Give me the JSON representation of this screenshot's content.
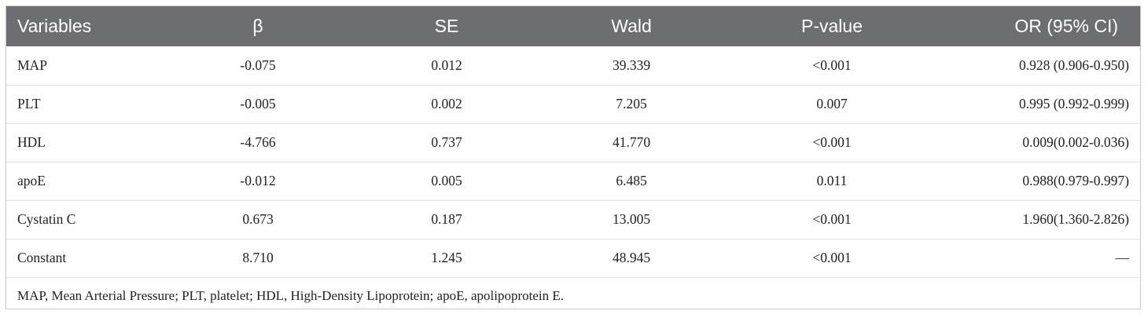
{
  "table": {
    "headers": {
      "variables": "Variables",
      "beta": "β",
      "se": "SE",
      "wald": "Wald",
      "p_value": "P-value",
      "or_ci": "OR (95% CI)"
    },
    "rows": [
      {
        "variable": "MAP",
        "beta": "-0.075",
        "se": "0.012",
        "wald": "39.339",
        "p_value": "<0.001",
        "or_ci": "0.928 (0.906-0.950)"
      },
      {
        "variable": "PLT",
        "beta": "-0.005",
        "se": "0.002",
        "wald": "7.205",
        "p_value": "0.007",
        "or_ci": "0.995 (0.992-0.999)"
      },
      {
        "variable": "HDL",
        "beta": "-4.766",
        "se": "0.737",
        "wald": "41.770",
        "p_value": "<0.001",
        "or_ci": "0.009(0.002-0.036)"
      },
      {
        "variable": "apoE",
        "beta": "-0.012",
        "se": "0.005",
        "wald": "6.485",
        "p_value": "0.011",
        "or_ci": "0.988(0.979-0.997)"
      },
      {
        "variable": "Cystatin C",
        "beta": "0.673",
        "se": "0.187",
        "wald": "13.005",
        "p_value": "<0.001",
        "or_ci": "1.960(1.360-2.826)"
      },
      {
        "variable": "Constant",
        "beta": "8.710",
        "se": "1.245",
        "wald": "48.945",
        "p_value": "<0.001",
        "or_ci": "—"
      }
    ],
    "footnote": "MAP, Mean Arterial Pressure; PLT, platelet; HDL, High-Density Lipoprotein; apoE, apolipoprotein E."
  },
  "colors": {
    "header_background": "#6d6e71",
    "header_text": "#ffffff",
    "row_divider": "#e4e4e4",
    "frame_border": "#c8c8c8"
  }
}
